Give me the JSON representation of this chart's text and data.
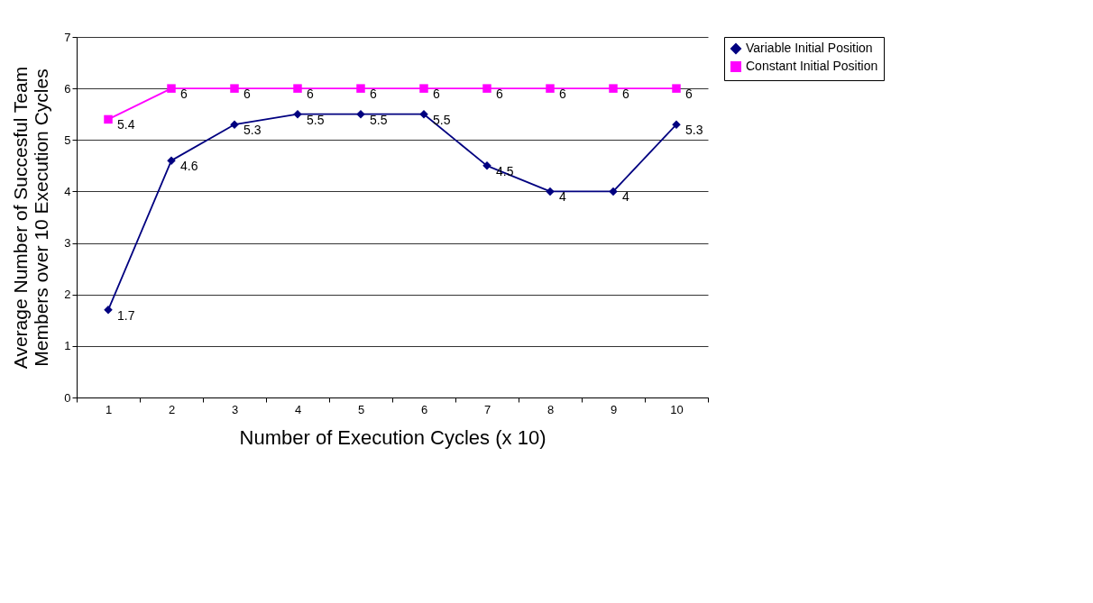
{
  "chart_data": {
    "type": "line",
    "xlabel": "Number of Execution Cycles (x 10)",
    "ylabel": "Average Number of Succesful Team Members over 10 Execution Cycles",
    "categories": [
      "1",
      "2",
      "3",
      "4",
      "5",
      "6",
      "7",
      "8",
      "9",
      "10"
    ],
    "series": [
      {
        "name": "Variable Initial Position",
        "color": "#000080",
        "marker": "diamond",
        "values": [
          1.7,
          4.6,
          5.3,
          5.5,
          5.5,
          5.5,
          4.5,
          4,
          4,
          5.3
        ]
      },
      {
        "name": "Constant Initial Position",
        "color": "#ff00ff",
        "marker": "square",
        "values": [
          5.4,
          6,
          6,
          6,
          6,
          6,
          6,
          6,
          6,
          6
        ]
      }
    ],
    "ylim": [
      0,
      7
    ],
    "yticks": [
      0,
      1,
      2,
      3,
      4,
      5,
      6,
      7
    ],
    "grid": "y",
    "legend": "right",
    "data_labels": true,
    "line_style": "solid"
  }
}
